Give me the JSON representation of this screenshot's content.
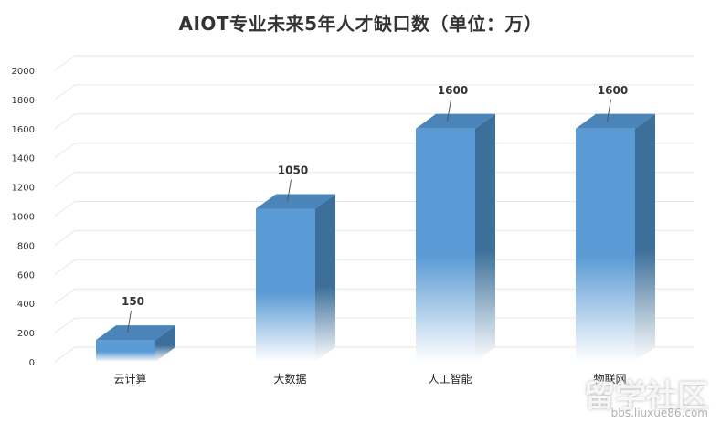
{
  "watermark": {
    "text": "留学社区",
    "sub": "bbs.liuxue86.com"
  },
  "chart_data": {
    "type": "bar",
    "title": "AIOT专业未来5年人才缺口数（单位：万）",
    "xlabel": "",
    "ylabel": "",
    "categories": [
      "云计算",
      "大数据",
      "人工智能",
      "物联网"
    ],
    "values": [
      150,
      1050,
      1600,
      1600
    ],
    "ylim": [
      0,
      2000
    ],
    "yticks": [
      0,
      200,
      400,
      600,
      800,
      1000,
      1200,
      1400,
      1600,
      1800,
      2000
    ],
    "grid": true,
    "legend": "none",
    "colors": {
      "front_top": "#5b9bd5",
      "front_bottom": "#ffffff",
      "side": "#3d6f9b",
      "top": "#4a84b8",
      "grid": "#e6e6e6"
    }
  }
}
